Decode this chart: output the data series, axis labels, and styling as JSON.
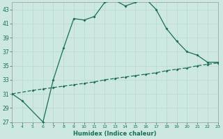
{
  "xlabel": "Humidex (Indice chaleur)",
  "background_color": "#cce8e0",
  "line_color": "#1a6b5a",
  "grid_color": "#b8d8d0",
  "xlim": [
    3,
    23
  ],
  "ylim": [
    27,
    44
  ],
  "xticks": [
    3,
    4,
    5,
    6,
    7,
    8,
    9,
    10,
    11,
    12,
    13,
    14,
    15,
    16,
    17,
    18,
    19,
    20,
    21,
    22,
    23
  ],
  "yticks": [
    27,
    29,
    31,
    33,
    35,
    37,
    39,
    41,
    43
  ],
  "curve1_x": [
    3,
    4,
    6,
    7,
    8,
    9,
    10,
    11,
    12,
    13,
    14,
    15,
    16,
    17,
    18,
    19,
    20,
    21,
    22,
    23
  ],
  "curve1_y": [
    31,
    30,
    27,
    33,
    37.5,
    41.7,
    41.5,
    42.0,
    44.0,
    44.3,
    43.5,
    44.0,
    44.5,
    43.0,
    40.3,
    38.5,
    37.0,
    36.5,
    35.5,
    35.5
  ],
  "curve2_x": [
    3,
    5,
    6,
    7,
    8,
    9,
    10,
    11,
    12,
    13,
    14,
    15,
    16,
    17,
    18,
    19,
    20,
    21,
    22,
    23
  ],
  "curve2_y": [
    31.0,
    31.5,
    31.7,
    31.9,
    32.1,
    32.3,
    32.5,
    32.7,
    33.0,
    33.2,
    33.4,
    33.6,
    33.8,
    34.0,
    34.3,
    34.5,
    34.7,
    35.0,
    35.2,
    35.4
  ]
}
